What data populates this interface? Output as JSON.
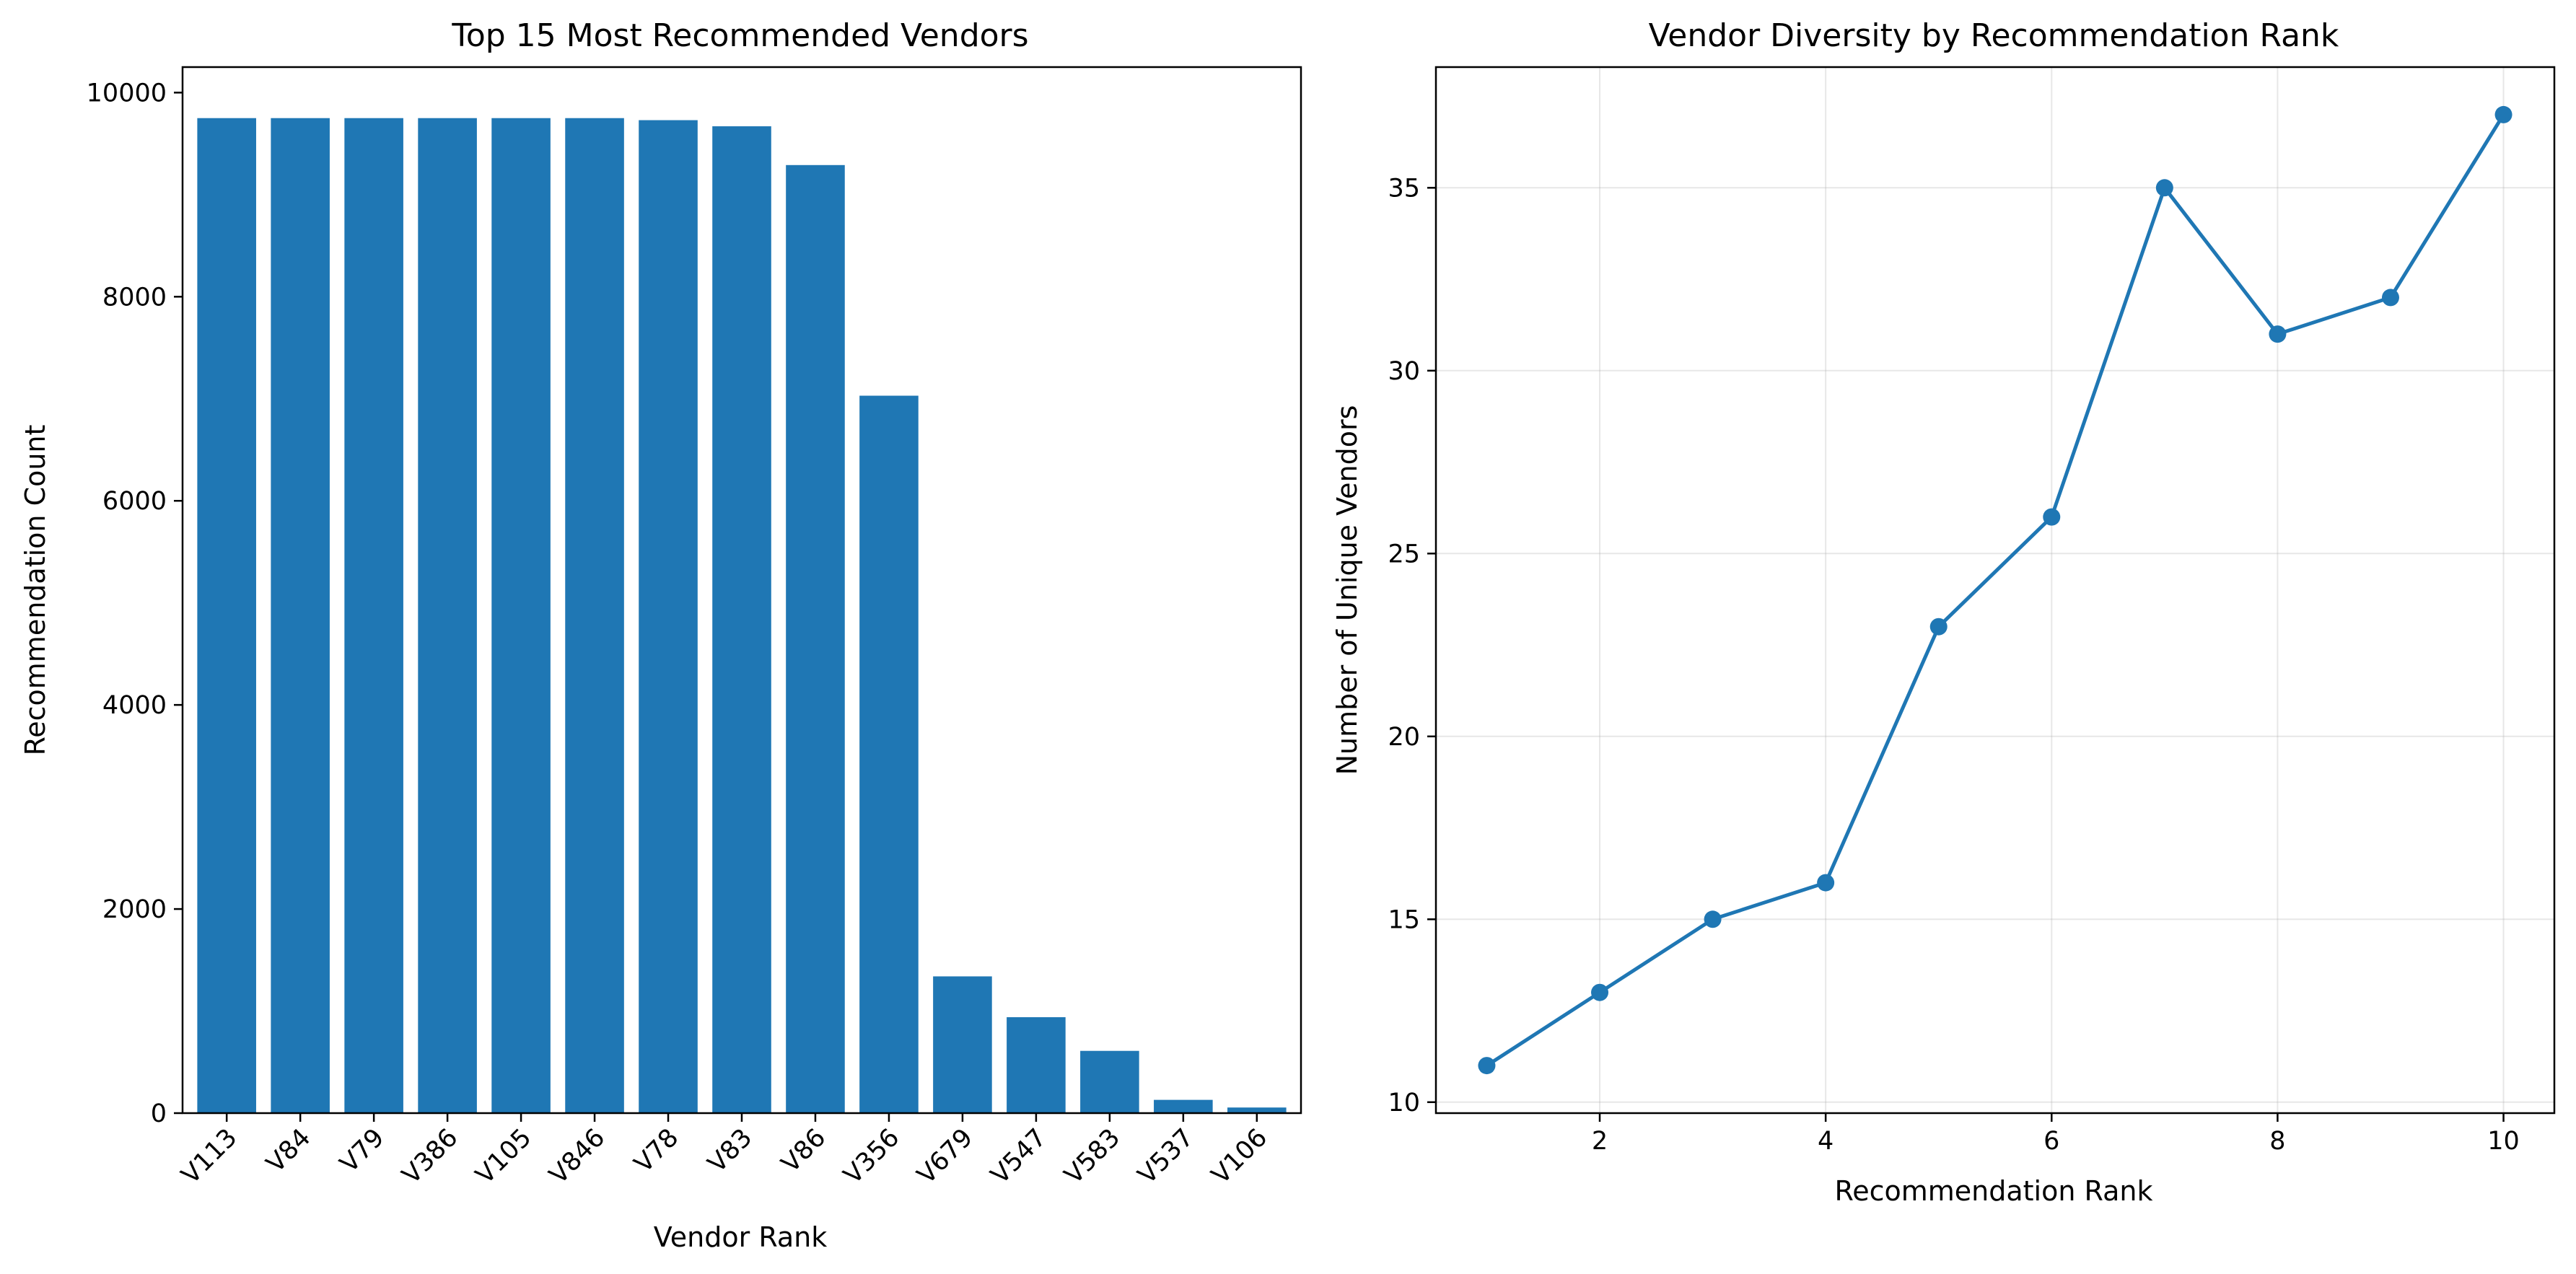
{
  "chart_data": [
    {
      "type": "bar",
      "title": "Top 15 Most Recommended Vendors",
      "xlabel": "Vendor Rank",
      "ylabel": "Recommendation Count",
      "categories": [
        "V113",
        "V84",
        "V79",
        "V386",
        "V105",
        "V846",
        "V78",
        "V83",
        "V86",
        "V356",
        "V679",
        "V547",
        "V583",
        "V537",
        "V106"
      ],
      "values": [
        9750,
        9750,
        9750,
        9750,
        9750,
        9750,
        9730,
        9670,
        9290,
        7030,
        1340,
        940,
        610,
        130,
        55
      ],
      "ylim": [
        0,
        10250
      ],
      "yticks": [
        0,
        2000,
        4000,
        6000,
        8000,
        10000
      ],
      "grid": false,
      "color": "#1f77b4"
    },
    {
      "type": "line",
      "title": "Vendor Diversity by Recommendation Rank",
      "xlabel": "Recommendation Rank",
      "ylabel": "Number of Unique Vendors",
      "x": [
        1,
        2,
        3,
        4,
        5,
        6,
        7,
        8,
        9,
        10
      ],
      "y": [
        11,
        13,
        15,
        16,
        23,
        26,
        35,
        31,
        32,
        37
      ],
      "xlim": [
        0.55,
        10.45
      ],
      "ylim": [
        9.7,
        38.3
      ],
      "xticks": [
        2,
        4,
        6,
        8,
        10
      ],
      "yticks": [
        10,
        15,
        20,
        25,
        30,
        35
      ],
      "grid": true,
      "marker": "circle",
      "color": "#1f77b4"
    }
  ]
}
